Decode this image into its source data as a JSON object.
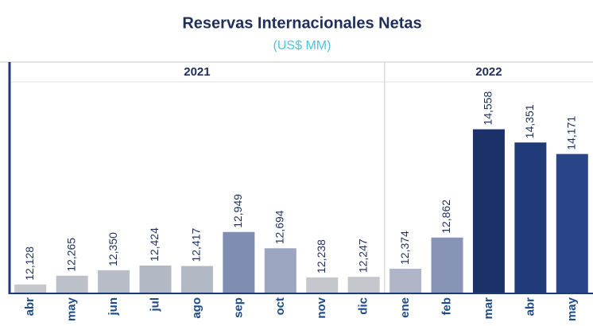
{
  "chart_data": {
    "type": "bar",
    "title": "Reservas Internacionales Netas",
    "subtitle": "(US$ MM)",
    "groups": [
      {
        "label": "2021",
        "size": 9
      },
      {
        "label": "2022",
        "size": 5
      }
    ],
    "categories": [
      "abr",
      "may",
      "jun",
      "jul",
      "ago",
      "sep",
      "oct",
      "nov",
      "dic",
      "ene",
      "feb",
      "mar",
      "abr",
      "may"
    ],
    "values": [
      12128,
      12265,
      12350,
      12424,
      12417,
      12949,
      12694,
      12238,
      12247,
      12374,
      12862,
      14558,
      14351,
      14171
    ],
    "value_labels": [
      "12,128",
      "12,265",
      "12,350",
      "12,424",
      "12,417",
      "12,949",
      "12,694",
      "12,238",
      "12,247",
      "12,374",
      "12,862",
      "14,558",
      "14,351",
      "14,171"
    ],
    "colors": [
      "#c5c7cd",
      "#bcc0c9",
      "#b8bcc7",
      "#b3b8c5",
      "#b3b8c5",
      "#7f8db1",
      "#9ca5c0",
      "#c5c7cd",
      "#c5c7cd",
      "#b0b6c7",
      "#8794b6",
      "#1c3069",
      "#213a7a",
      "#2a4488"
    ],
    "ylim": [
      12000,
      15300
    ]
  }
}
